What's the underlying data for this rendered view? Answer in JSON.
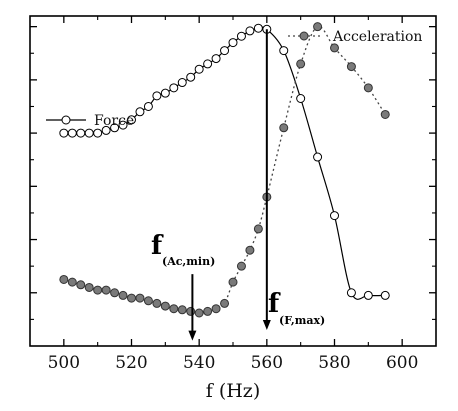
{
  "chart_data": {
    "type": "line",
    "title": "",
    "xlabel": "f (Hz)",
    "ylabel": "",
    "xlim": [
      490,
      610
    ],
    "ylim": [
      0,
      6.2
    ],
    "xticks": [
      500,
      520,
      540,
      560,
      580,
      600
    ],
    "y_ticks_unlabeled": [
      1,
      2,
      3,
      4,
      5,
      6
    ],
    "legend": [
      "top-right",
      "left"
    ],
    "series": [
      {
        "name": "Force",
        "style": "solid line, open circle markers",
        "color": "#000000",
        "x": [
          500,
          502.5,
          505,
          507.5,
          510,
          512.5,
          515,
          517.5,
          520,
          522.5,
          525,
          527.5,
          530,
          532.5,
          535,
          537.5,
          540,
          542.5,
          545,
          547.5,
          550,
          552.5,
          555,
          557.5,
          560,
          565,
          570,
          575,
          580,
          585,
          590,
          595
        ],
        "y": [
          4.0,
          4.0,
          4.0,
          4.0,
          4.0,
          4.05,
          4.1,
          4.15,
          4.25,
          4.4,
          4.5,
          4.7,
          4.75,
          4.85,
          4.95,
          5.05,
          5.2,
          5.3,
          5.4,
          5.55,
          5.7,
          5.82,
          5.92,
          5.97,
          5.95,
          5.55,
          4.65,
          3.55,
          2.45,
          1.0,
          0.95,
          0.95
        ]
      },
      {
        "name": "Acceleration",
        "style": "dotted line, grey filled circle markers",
        "color": "#7a7a7a",
        "x": [
          500,
          502.5,
          505,
          507.5,
          510,
          512.5,
          515,
          517.5,
          520,
          522.5,
          525,
          527.5,
          530,
          532.5,
          535,
          537.5,
          540,
          542.5,
          545,
          547.5,
          550,
          552.5,
          555,
          557.5,
          560,
          565,
          570,
          575,
          580,
          585,
          590,
          595
        ],
        "y": [
          1.25,
          1.2,
          1.15,
          1.1,
          1.05,
          1.05,
          1.0,
          0.95,
          0.9,
          0.9,
          0.85,
          0.8,
          0.75,
          0.7,
          0.68,
          0.65,
          0.62,
          0.65,
          0.7,
          0.8,
          1.2,
          1.5,
          1.8,
          2.2,
          2.8,
          4.1,
          5.3,
          6.0,
          5.6,
          5.25,
          4.85,
          4.35
        ]
      }
    ],
    "annotations": [
      {
        "main": "f",
        "sub": "(Ac,min)",
        "arrow_x": 538,
        "arrow_from_y": 1.35,
        "arrow_to_y": 0.1
      },
      {
        "main": "f",
        "sub": "(F,max)",
        "arrow_x": 560,
        "arrow_from_y": 5.95,
        "arrow_to_y": 0.3
      }
    ]
  }
}
